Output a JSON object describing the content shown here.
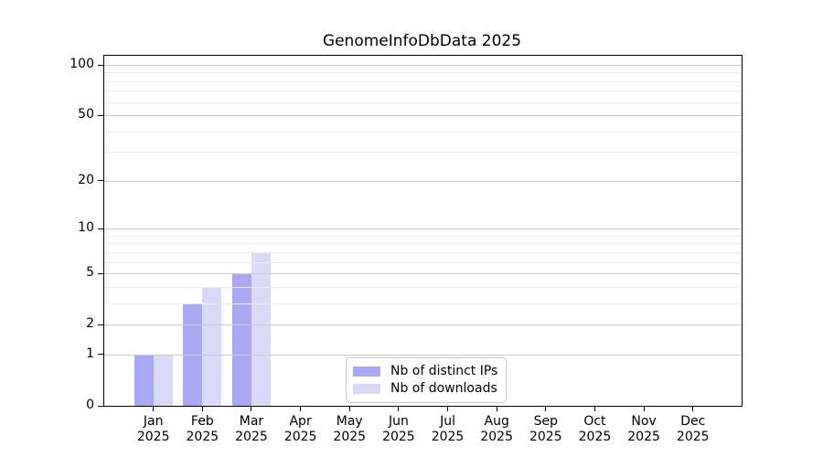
{
  "chart_data": {
    "type": "bar",
    "title": "GenomeInfoDbData 2025",
    "year_label": "2025",
    "months": [
      "Jan",
      "Feb",
      "Mar",
      "Apr",
      "May",
      "Jun",
      "Jul",
      "Aug",
      "Sep",
      "Oct",
      "Nov",
      "Dec"
    ],
    "series": [
      {
        "name": "Nb of distinct IPs",
        "color": "#a8a8f5",
        "values": [
          1,
          3,
          5,
          0,
          0,
          0,
          0,
          0,
          0,
          0,
          0,
          0
        ]
      },
      {
        "name": "Nb of downloads",
        "color": "#d9d9f8",
        "values": [
          1,
          4,
          7,
          0,
          0,
          0,
          0,
          0,
          0,
          0,
          0,
          0
        ]
      }
    ],
    "y_axis": {
      "scale": "log1p",
      "max": 100,
      "tick_values": [
        100,
        50,
        20,
        10,
        5,
        2,
        1,
        0
      ],
      "major_gridlines": [
        1,
        2,
        5,
        10,
        20,
        50,
        100
      ],
      "minor_gridlines": [
        3,
        4,
        6,
        7,
        8,
        9,
        30,
        40,
        60,
        70,
        80,
        90
      ]
    },
    "xlabel": "",
    "ylabel": "",
    "grid": true,
    "legend_position": "lower-center-inside"
  },
  "style": {
    "major_grid_color": "#cccccc",
    "minor_grid_color": "#ececec",
    "axis_color": "#000000",
    "background": "#ffffff"
  }
}
